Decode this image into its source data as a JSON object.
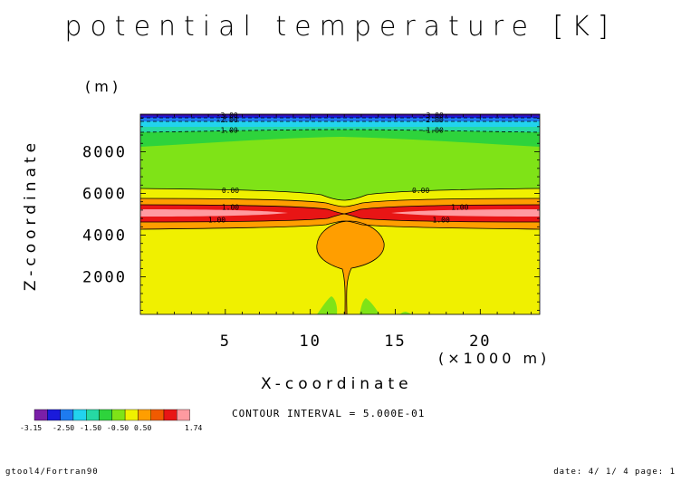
{
  "title": "potential temperature [K]",
  "contour_interval": "CONTOUR INTERVAL = 5.000E-01",
  "footer": {
    "left": "gtool4/Fortran90",
    "right": "date: 4/ 1/ 4 page: 1"
  },
  "chart_data": {
    "type": "heatmap",
    "title": "potential temperature [K]",
    "xlabel": "X-coordinate",
    "x_unit": "(×1000 m)",
    "ylabel": "Z-coordinate",
    "y_unit": "(m)",
    "xlim": [
      0,
      23.5
    ],
    "ylim": [
      200,
      9800
    ],
    "x_ticks": [
      5,
      10,
      15,
      20
    ],
    "y_ticks": [
      2000,
      4000,
      6000,
      8000
    ],
    "grid": false,
    "color_scale": {
      "boundaries": [
        "-3.15",
        "-2.50",
        "-1.50",
        "-0.50",
        "0.50",
        "1.74"
      ],
      "colors": [
        "#7a1fa8",
        "#1a1adb",
        "#1e7bf0",
        "#22d3ee",
        "#26d9a4",
        "#2ed33c",
        "#7fe317",
        "#f0f000",
        "#ff9e00",
        "#f05a00",
        "#e81515",
        "#ff9aa0"
      ]
    },
    "contour_labels": [
      {
        "text": "-3.00",
        "x": 5.1,
        "y": 9750
      },
      {
        "text": "-2.00",
        "x": 5.1,
        "y": 9550
      },
      {
        "text": "-1.00",
        "x": 5.1,
        "y": 9050
      },
      {
        "text": "0.00",
        "x": 5.3,
        "y": 6150
      },
      {
        "text": "1.00",
        "x": 5.3,
        "y": 5350
      },
      {
        "text": "1.00",
        "x": 4.5,
        "y": 4750
      },
      {
        "text": "-3.00",
        "x": 17.2,
        "y": 9750
      },
      {
        "text": "-2.00",
        "x": 17.2,
        "y": 9550
      },
      {
        "text": "-1.00",
        "x": 17.2,
        "y": 9050
      },
      {
        "text": "0.00",
        "x": 16.5,
        "y": 6150
      },
      {
        "text": "1.00",
        "x": 18.8,
        "y": 5350
      },
      {
        "text": "1.00",
        "x": 17.7,
        "y": 4750
      }
    ]
  }
}
